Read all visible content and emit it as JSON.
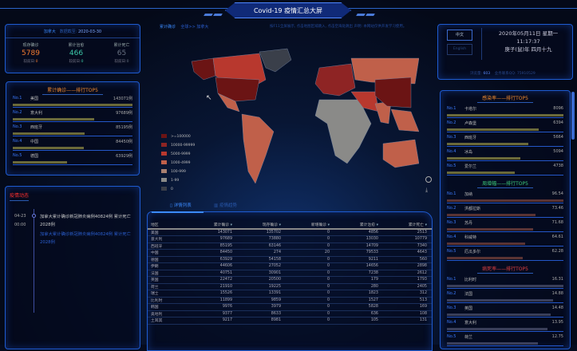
{
  "header": {
    "title": "Covid-19 疫情汇总大屏"
  },
  "summary": {
    "country": "加拿大",
    "date_label": "数据截至:",
    "date": "2020-03-30",
    "stats": [
      {
        "label": "现存确诊",
        "value": "5789",
        "sub_label": "较前日:",
        "sub_value": "0",
        "color": "#f07a30"
      },
      {
        "label": "累计治愈",
        "value": "466",
        "sub_label": "较前日:",
        "sub_value": "0",
        "color": "#3cc8a8"
      },
      {
        "label": "累计死亡",
        "value": "65",
        "sub_label": "较前日:",
        "sub_value": "0",
        "color": "#667080"
      }
    ]
  },
  "top5_confirmed": {
    "title": "累计确诊——排行TOP5",
    "bar_color": "#6b6a3a",
    "items": [
      {
        "no": "No.1",
        "name": "美国",
        "value": "143071例",
        "pct": 100
      },
      {
        "no": "No.2",
        "name": "意大利",
        "value": "97689例",
        "pct": 68
      },
      {
        "no": "No.3",
        "name": "西班牙",
        "value": "85195例",
        "pct": 60
      },
      {
        "no": "No.4",
        "name": "中国",
        "value": "84450例",
        "pct": 59
      },
      {
        "no": "No.5",
        "name": "德国",
        "value": "63929例",
        "pct": 45
      }
    ]
  },
  "news": {
    "title": "疫情动态",
    "items": [
      {
        "date": "04-23",
        "time": "00:00",
        "text": "加拿大累计确诊新冠肺炎病例40824例 累计死亡2028例",
        "text2": "加拿大累计确诊新冠肺炎病例40824例 累计死亡2028例"
      }
    ]
  },
  "breadcrumb": {
    "metric": "累计确诊",
    "path": "全球>> 加拿大"
  },
  "notice": "按F11全屏展示, 点击地图区域跳入, 点击空海处跳出 声明: 本网站仅供开发学习使用。",
  "map_legend": [
    {
      "label": ">=100000",
      "color": "#6b1414"
    },
    {
      "label": "10000-99999",
      "color": "#8e2424"
    },
    {
      "label": "5000-9999",
      "color": "#b8382e"
    },
    {
      "label": "1000-4999",
      "color": "#c0604a"
    },
    {
      "label": "100-999",
      "color": "#a88070"
    },
    {
      "label": "1-99",
      "color": "#8a8a88"
    },
    {
      "label": "0",
      "color": "#3a3f4a"
    }
  ],
  "tabs": [
    {
      "label": "详情列表",
      "active": true
    },
    {
      "label": "疫情趋势",
      "active": false
    }
  ],
  "table": {
    "columns": [
      "地区",
      "累计确诊",
      "现存确诊",
      "新增确诊",
      "累计治愈",
      "累计死亡"
    ],
    "rows": [
      [
        "美国",
        "143071",
        "135702",
        "0",
        "4856",
        "2513"
      ],
      [
        "意大利",
        "97689",
        "73880",
        "0",
        "13030",
        "10779"
      ],
      [
        "西班牙",
        "85195",
        "63146",
        "0",
        "14709",
        "7340"
      ],
      [
        "中国",
        "84450",
        "274",
        "20",
        "79533",
        "4643"
      ],
      [
        "德国",
        "63929",
        "54158",
        "0",
        "9211",
        "560"
      ],
      [
        "伊朗",
        "44606",
        "27052",
        "0",
        "14656",
        "2898"
      ],
      [
        "法国",
        "40751",
        "30901",
        "0",
        "7238",
        "2612"
      ],
      [
        "英国",
        "22472",
        "20500",
        "0",
        "179",
        "1793"
      ],
      [
        "荷兰",
        "21910",
        "19225",
        "0",
        "280",
        "2405"
      ],
      [
        "瑞士",
        "15526",
        "13391",
        "0",
        "1823",
        "312"
      ],
      [
        "比利时",
        "11899",
        "9859",
        "0",
        "1527",
        "513"
      ],
      [
        "韩国",
        "9976",
        "3979",
        "0",
        "5828",
        "169"
      ],
      [
        "奥地利",
        "9377",
        "8633",
        "0",
        "636",
        "108"
      ],
      [
        "土耳其",
        "9217",
        "8981",
        "0",
        "105",
        "131"
      ]
    ]
  },
  "info": {
    "lang_zh": "中文",
    "lang_en": "English",
    "date": "2020年05月11日 星期一",
    "time": "11:17:37",
    "lunar": "庚子(鼠)年 四月十九",
    "views_label": "浏览量:",
    "views": "603",
    "contact": "业务联系QQ: 75910529"
  },
  "right_lists": [
    {
      "title": "感染率——排行TOP5",
      "title_color": "#f08a30",
      "bar_color": "#6b6a3a",
      "items": [
        {
          "no": "No.1",
          "name": "卡塔尔",
          "value": "8096",
          "pct": 100
        },
        {
          "no": "No.2",
          "name": "卢森堡",
          "value": "6394",
          "pct": 79
        },
        {
          "no": "No.3",
          "name": "西班牙",
          "value": "5664",
          "pct": 70
        },
        {
          "no": "No.4",
          "name": "冰岛",
          "value": "5094",
          "pct": 63
        },
        {
          "no": "No.5",
          "name": "爱尔兰",
          "value": "4738",
          "pct": 58
        }
      ]
    },
    {
      "title": "周增幅——排行TOP5",
      "title_color": "#3cc878",
      "bar_color": "#5a3434",
      "items": [
        {
          "no": "No.1",
          "name": "加纳",
          "value": "96.54",
          "pct": 100
        },
        {
          "no": "No.2",
          "name": "洪都拉斯",
          "value": "73.46",
          "pct": 76
        },
        {
          "no": "No.3",
          "name": "苏丹",
          "value": "71.68",
          "pct": 74
        },
        {
          "no": "No.4",
          "name": "科威特",
          "value": "64.61",
          "pct": 67
        },
        {
          "no": "No.5",
          "name": "厄瓜多尔",
          "value": "62.28",
          "pct": 65
        }
      ]
    },
    {
      "title": "病死率——排行TOP5",
      "title_color": "#e04040",
      "bar_color": "#3a3f5a",
      "items": [
        {
          "no": "No.1",
          "name": "比利时",
          "value": "16.31",
          "pct": 100
        },
        {
          "no": "No.2",
          "name": "法国",
          "value": "14.88",
          "pct": 91
        },
        {
          "no": "No.3",
          "name": "英国",
          "value": "14.48",
          "pct": 89
        },
        {
          "no": "No.4",
          "name": "意大利",
          "value": "13.95",
          "pct": 86
        },
        {
          "no": "No.5",
          "name": "荷兰",
          "value": "12.75",
          "pct": 78
        }
      ]
    }
  ]
}
